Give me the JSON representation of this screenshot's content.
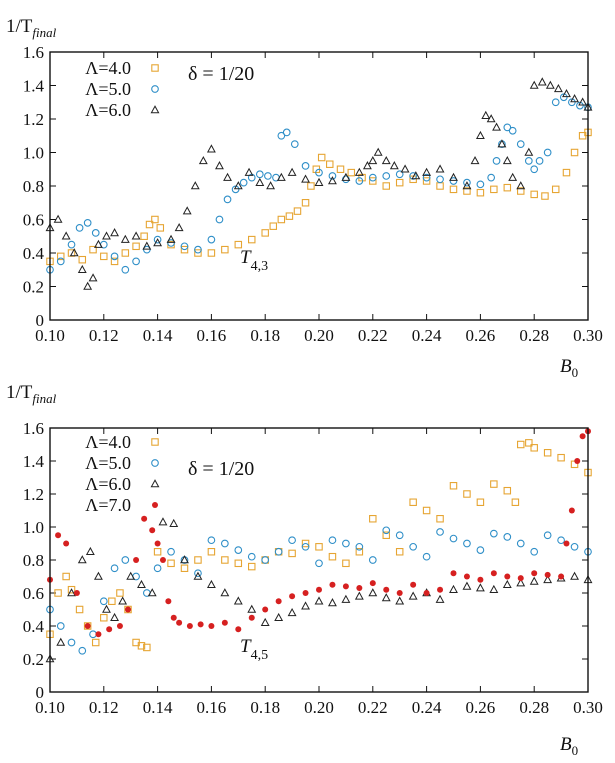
{
  "colors": {
    "lambda4": "#e6a533",
    "lambda5": "#2f8fc8",
    "lambda6": "#222222",
    "lambda7": "#d62020"
  },
  "chart_data": [
    {
      "type": "scatter",
      "ylabel_main": "1/T",
      "ylabel_sub": "final",
      "xlabel_main": "B",
      "xlabel_sub": "0",
      "annotation": "δ = 1/20",
      "label_main": "T",
      "label_sub": "4,3",
      "xlim": [
        0.1,
        0.3
      ],
      "ylim": [
        0,
        1.6
      ],
      "xticks": [
        "0.10",
        "0.12",
        "0.14",
        "0.16",
        "0.18",
        "0.20",
        "0.22",
        "0.24",
        "0.26",
        "0.28",
        "0.30"
      ],
      "yticks": [
        "0",
        "0.2",
        "0.4",
        "0.6",
        "0.8",
        "1.0",
        "1.2",
        "1.4",
        "1.6"
      ],
      "legend_position": "top-left",
      "grid": false,
      "series": [
        {
          "name": "Λ=4.0",
          "marker": "square",
          "color": "#e6a533",
          "x": [
            0.1,
            0.104,
            0.108,
            0.112,
            0.116,
            0.12,
            0.124,
            0.128,
            0.132,
            0.135,
            0.137,
            0.139,
            0.141,
            0.145,
            0.15,
            0.155,
            0.16,
            0.165,
            0.17,
            0.175,
            0.18,
            0.183,
            0.186,
            0.189,
            0.192,
            0.195,
            0.197,
            0.199,
            0.201,
            0.204,
            0.208,
            0.212,
            0.216,
            0.22,
            0.225,
            0.23,
            0.235,
            0.24,
            0.245,
            0.25,
            0.255,
            0.26,
            0.265,
            0.27,
            0.275,
            0.28,
            0.284,
            0.288,
            0.292,
            0.295,
            0.298,
            0.3
          ],
          "y": [
            0.35,
            0.38,
            0.4,
            0.36,
            0.42,
            0.38,
            0.35,
            0.4,
            0.44,
            0.5,
            0.57,
            0.6,
            0.55,
            0.45,
            0.42,
            0.4,
            0.4,
            0.42,
            0.45,
            0.48,
            0.52,
            0.56,
            0.6,
            0.62,
            0.65,
            0.7,
            0.8,
            0.9,
            0.97,
            0.93,
            0.9,
            0.88,
            0.85,
            0.83,
            0.8,
            0.82,
            0.84,
            0.83,
            0.8,
            0.78,
            0.77,
            0.76,
            0.78,
            0.79,
            0.77,
            0.75,
            0.74,
            0.78,
            0.88,
            1.0,
            1.1,
            1.12
          ]
        },
        {
          "name": "Λ=5.0",
          "marker": "circle",
          "color": "#2f8fc8",
          "x": [
            0.1,
            0.104,
            0.108,
            0.111,
            0.114,
            0.117,
            0.12,
            0.124,
            0.128,
            0.132,
            0.136,
            0.14,
            0.145,
            0.15,
            0.155,
            0.16,
            0.163,
            0.166,
            0.169,
            0.172,
            0.175,
            0.178,
            0.181,
            0.184,
            0.186,
            0.188,
            0.191,
            0.195,
            0.2,
            0.205,
            0.21,
            0.215,
            0.22,
            0.225,
            0.23,
            0.235,
            0.24,
            0.245,
            0.25,
            0.255,
            0.26,
            0.264,
            0.266,
            0.268,
            0.27,
            0.272,
            0.275,
            0.278,
            0.28,
            0.282,
            0.285,
            0.288,
            0.291,
            0.294,
            0.297,
            0.3
          ],
          "y": [
            0.3,
            0.35,
            0.45,
            0.55,
            0.58,
            0.52,
            0.45,
            0.38,
            0.3,
            0.35,
            0.42,
            0.48,
            0.46,
            0.44,
            0.42,
            0.48,
            0.6,
            0.72,
            0.78,
            0.82,
            0.85,
            0.87,
            0.86,
            0.85,
            1.1,
            1.12,
            1.05,
            0.92,
            0.88,
            0.86,
            0.84,
            0.83,
            0.85,
            0.86,
            0.87,
            0.86,
            0.85,
            0.84,
            0.83,
            0.82,
            0.81,
            0.85,
            0.95,
            1.05,
            1.15,
            1.13,
            1.05,
            0.95,
            0.9,
            0.95,
            1.0,
            1.3,
            1.33,
            1.3,
            1.28,
            1.27
          ]
        },
        {
          "name": "Λ=6.0",
          "marker": "triangle",
          "color": "#222222",
          "x": [
            0.1,
            0.103,
            0.106,
            0.109,
            0.112,
            0.114,
            0.116,
            0.118,
            0.121,
            0.124,
            0.128,
            0.132,
            0.136,
            0.14,
            0.145,
            0.148,
            0.151,
            0.154,
            0.157,
            0.16,
            0.163,
            0.166,
            0.17,
            0.174,
            0.178,
            0.182,
            0.186,
            0.19,
            0.195,
            0.2,
            0.205,
            0.21,
            0.215,
            0.218,
            0.22,
            0.222,
            0.225,
            0.228,
            0.232,
            0.236,
            0.24,
            0.245,
            0.25,
            0.255,
            0.258,
            0.26,
            0.262,
            0.264,
            0.266,
            0.268,
            0.27,
            0.272,
            0.275,
            0.278,
            0.28,
            0.283,
            0.286,
            0.289,
            0.292,
            0.295,
            0.298,
            0.3
          ],
          "y": [
            0.55,
            0.6,
            0.5,
            0.4,
            0.3,
            0.2,
            0.25,
            0.45,
            0.5,
            0.52,
            0.48,
            0.5,
            0.44,
            0.46,
            0.48,
            0.55,
            0.65,
            0.8,
            0.95,
            1.02,
            0.92,
            0.85,
            0.8,
            0.88,
            0.82,
            0.8,
            0.85,
            0.88,
            0.84,
            0.82,
            0.83,
            0.85,
            0.88,
            0.92,
            0.95,
            1.0,
            0.95,
            0.92,
            0.9,
            0.86,
            0.88,
            0.9,
            0.85,
            0.8,
            0.95,
            1.1,
            1.22,
            1.2,
            1.15,
            1.05,
            0.95,
            0.85,
            0.8,
            1.0,
            1.4,
            1.42,
            1.4,
            1.38,
            1.35,
            1.32,
            1.3,
            1.27
          ]
        }
      ]
    },
    {
      "type": "scatter",
      "ylabel_main": "1/T",
      "ylabel_sub": "final",
      "xlabel_main": "B",
      "xlabel_sub": "0",
      "annotation": "δ = 1/20",
      "label_main": "T",
      "label_sub": "4,5",
      "xlim": [
        0.1,
        0.3
      ],
      "ylim": [
        0,
        1.6
      ],
      "xticks": [
        "0.10",
        "0.12",
        "0.14",
        "0.16",
        "0.18",
        "0.20",
        "0.22",
        "0.24",
        "0.26",
        "0.28",
        "0.30"
      ],
      "yticks": [
        "0",
        "0.2",
        "0.4",
        "0.6",
        "0.8",
        "1.0",
        "1.2",
        "1.4",
        "1.6"
      ],
      "legend_position": "top-left",
      "grid": false,
      "series": [
        {
          "name": "Λ=4.0",
          "marker": "square",
          "color": "#e6a533",
          "x": [
            0.1,
            0.103,
            0.106,
            0.108,
            0.111,
            0.114,
            0.117,
            0.12,
            0.123,
            0.126,
            0.129,
            0.132,
            0.134,
            0.136,
            0.14,
            0.145,
            0.15,
            0.155,
            0.16,
            0.165,
            0.17,
            0.175,
            0.18,
            0.185,
            0.19,
            0.195,
            0.2,
            0.205,
            0.21,
            0.215,
            0.22,
            0.225,
            0.23,
            0.235,
            0.24,
            0.245,
            0.25,
            0.255,
            0.26,
            0.265,
            0.27,
            0.273,
            0.275,
            0.278,
            0.28,
            0.285,
            0.29,
            0.295,
            0.3
          ],
          "y": [
            0.35,
            0.6,
            0.7,
            0.62,
            0.5,
            0.4,
            0.3,
            0.45,
            0.55,
            0.6,
            0.5,
            0.3,
            0.28,
            0.27,
            0.85,
            0.78,
            0.75,
            0.8,
            0.85,
            0.8,
            0.78,
            0.76,
            0.8,
            0.85,
            0.84,
            0.9,
            0.88,
            0.82,
            0.78,
            0.85,
            1.05,
            0.95,
            0.85,
            1.15,
            1.1,
            1.05,
            1.25,
            1.2,
            1.15,
            1.26,
            1.22,
            1.15,
            1.5,
            1.51,
            1.48,
            1.45,
            1.42,
            1.38,
            1.33
          ]
        },
        {
          "name": "Λ=5.0",
          "marker": "circle",
          "color": "#2f8fc8",
          "x": [
            0.1,
            0.104,
            0.108,
            0.112,
            0.116,
            0.12,
            0.124,
            0.128,
            0.132,
            0.136,
            0.14,
            0.145,
            0.15,
            0.155,
            0.16,
            0.165,
            0.17,
            0.175,
            0.18,
            0.185,
            0.19,
            0.195,
            0.2,
            0.205,
            0.21,
            0.215,
            0.22,
            0.225,
            0.23,
            0.235,
            0.24,
            0.245,
            0.25,
            0.255,
            0.26,
            0.265,
            0.27,
            0.275,
            0.28,
            0.285,
            0.29,
            0.295,
            0.3
          ],
          "y": [
            0.5,
            0.4,
            0.3,
            0.25,
            0.35,
            0.55,
            0.75,
            0.8,
            0.7,
            0.6,
            0.75,
            0.85,
            0.8,
            0.72,
            0.92,
            0.9,
            0.86,
            0.82,
            0.8,
            0.85,
            0.92,
            0.88,
            0.78,
            0.92,
            0.9,
            0.88,
            0.8,
            0.98,
            0.95,
            0.88,
            0.82,
            0.97,
            0.93,
            0.9,
            0.86,
            0.96,
            0.94,
            0.9,
            0.85,
            0.95,
            0.92,
            0.88,
            0.85
          ]
        },
        {
          "name": "Λ=6.0",
          "marker": "triangle",
          "color": "#222222",
          "x": [
            0.1,
            0.104,
            0.108,
            0.112,
            0.115,
            0.118,
            0.121,
            0.124,
            0.127,
            0.13,
            0.134,
            0.138,
            0.142,
            0.146,
            0.15,
            0.155,
            0.16,
            0.165,
            0.17,
            0.175,
            0.18,
            0.185,
            0.19,
            0.195,
            0.2,
            0.205,
            0.21,
            0.215,
            0.22,
            0.225,
            0.23,
            0.235,
            0.24,
            0.245,
            0.25,
            0.255,
            0.26,
            0.265,
            0.27,
            0.275,
            0.28,
            0.285,
            0.29,
            0.295,
            0.3
          ],
          "y": [
            0.2,
            0.3,
            0.6,
            0.8,
            0.85,
            0.7,
            0.5,
            0.45,
            0.55,
            0.7,
            0.65,
            0.6,
            1.03,
            1.02,
            0.8,
            0.7,
            0.65,
            0.6,
            0.55,
            0.5,
            0.42,
            0.45,
            0.48,
            0.52,
            0.55,
            0.54,
            0.56,
            0.58,
            0.6,
            0.57,
            0.55,
            0.58,
            0.6,
            0.56,
            0.62,
            0.64,
            0.63,
            0.62,
            0.65,
            0.66,
            0.67,
            0.68,
            0.69,
            0.7,
            0.68
          ]
        },
        {
          "name": "Λ=7.0",
          "marker": "dot",
          "color": "#d62020",
          "x": [
            0.1,
            0.103,
            0.106,
            0.11,
            0.114,
            0.118,
            0.122,
            0.126,
            0.129,
            0.132,
            0.135,
            0.138,
            0.14,
            0.142,
            0.144,
            0.146,
            0.148,
            0.152,
            0.156,
            0.16,
            0.165,
            0.17,
            0.175,
            0.18,
            0.185,
            0.19,
            0.195,
            0.2,
            0.205,
            0.21,
            0.215,
            0.22,
            0.225,
            0.23,
            0.235,
            0.24,
            0.245,
            0.25,
            0.255,
            0.26,
            0.265,
            0.27,
            0.275,
            0.28,
            0.285,
            0.29,
            0.292,
            0.294,
            0.296,
            0.298,
            0.3
          ],
          "y": [
            0.68,
            0.95,
            0.9,
            0.6,
            0.4,
            0.35,
            0.38,
            0.4,
            0.5,
            0.8,
            1.05,
            0.98,
            0.9,
            0.8,
            0.55,
            0.45,
            0.42,
            0.4,
            0.41,
            0.4,
            0.42,
            0.38,
            0.45,
            0.5,
            0.55,
            0.58,
            0.6,
            0.62,
            0.65,
            0.64,
            0.63,
            0.66,
            0.62,
            0.6,
            0.65,
            0.6,
            0.62,
            0.72,
            0.7,
            0.68,
            0.72,
            0.7,
            0.69,
            0.72,
            0.71,
            0.7,
            0.9,
            1.1,
            1.4,
            1.55,
            1.58
          ]
        }
      ]
    }
  ]
}
